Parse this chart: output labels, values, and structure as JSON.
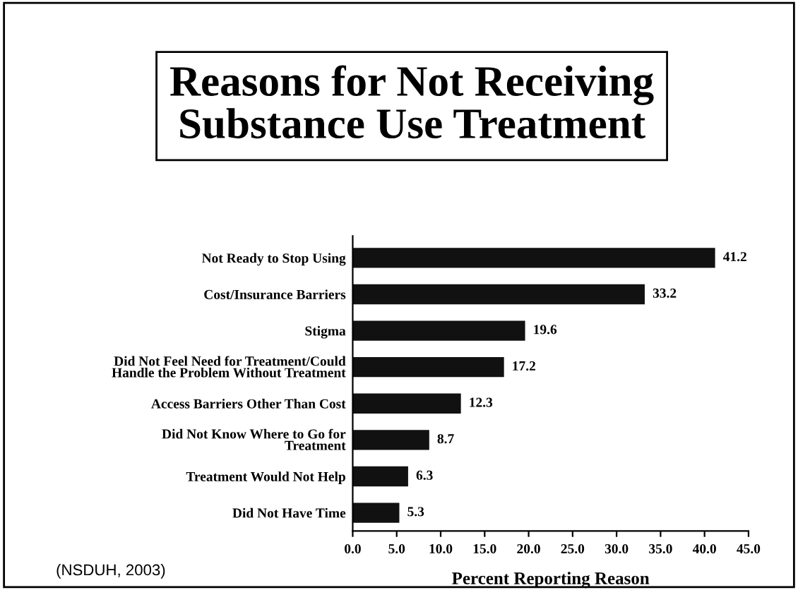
{
  "chart_data": {
    "type": "bar",
    "orientation": "horizontal",
    "title": "Reasons for Not Receiving\nSubstance Use Treatment",
    "xlabel": "Percent Reporting Reason",
    "categories": [
      "Not Ready to Stop Using",
      "Cost/Insurance Barriers",
      "Stigma",
      "Did Not Feel Need for Treatment/Could\nHandle the Problem Without Treatment",
      "Access Barriers Other Than Cost",
      "Did Not Know Where to Go for\nTreatment",
      "Treatment Would Not Help",
      "Did Not Have Time"
    ],
    "values": [
      41.2,
      33.2,
      19.6,
      17.2,
      12.3,
      8.7,
      6.3,
      5.3
    ],
    "color": "#111111",
    "data_labels": true,
    "xlim": [
      0,
      45
    ],
    "xticks": [
      {
        "value": 0,
        "label": "0.0"
      },
      {
        "value": 5,
        "label": "5.0"
      },
      {
        "value": 10,
        "label": "10.0"
      },
      {
        "value": 15,
        "label": "15.0"
      },
      {
        "value": 20,
        "label": "20.0"
      },
      {
        "value": 25,
        "label": "25.0"
      },
      {
        "value": 30,
        "label": "30.0"
      },
      {
        "value": 35,
        "label": "35.0"
      },
      {
        "value": 40,
        "label": "40.0"
      },
      {
        "value": 45,
        "label": "45.0"
      }
    ],
    "grid": false,
    "legend": false,
    "annotations": [
      "(NSDUH, 2003)"
    ]
  }
}
